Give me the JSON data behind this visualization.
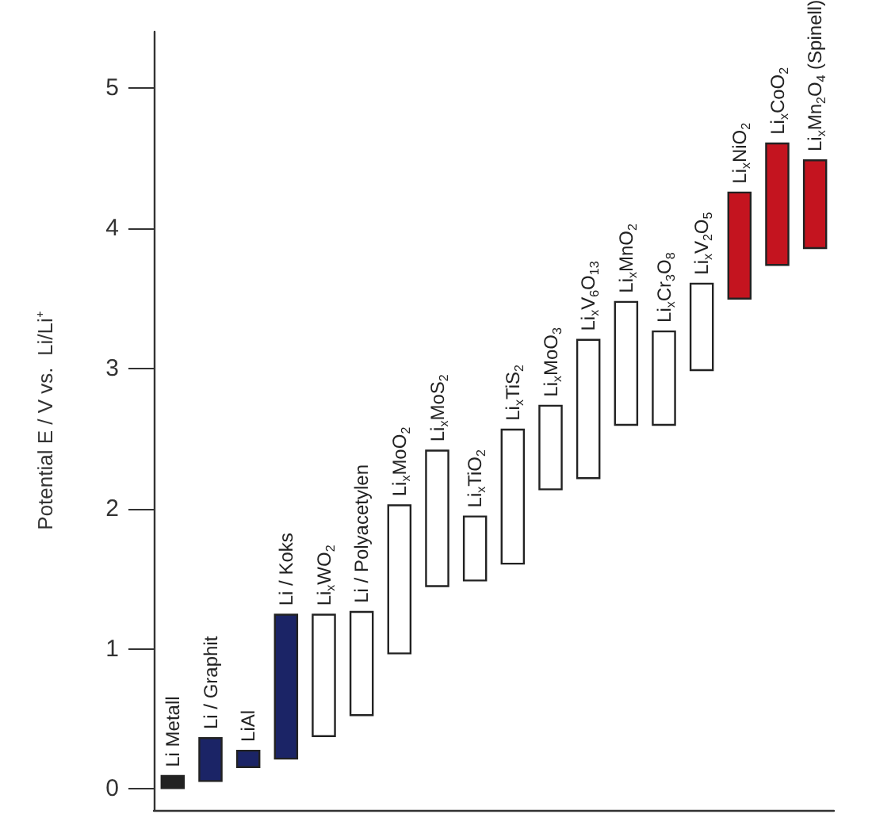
{
  "chart_data": {
    "type": "bar",
    "ylabel": "Potential E / V vs.  Li/Li⁺",
    "categories": [
      "Li Metall",
      "Li / Graphit",
      "LiAl",
      "Li / Koks",
      "Li$_{x}$WO$_{2}$",
      "Li / Polyacetylen",
      "Li$_{x}$MoO$_{2}$",
      "Li$_{x}$MoS$_{2}$",
      "Li$_{x}$TiO$_{2}$",
      "Li$_{x}$TiS$_{2}$",
      "Li$_{x}$MoO$_{3}$",
      "Li$_{x}$V$_{6}$O$_{13}$",
      "Li$_{x}$MnO$_{2}$",
      "Li$_{x}$Cr$_{3}$O$_{8}$",
      "Li$_{x}$V$_{2}$O$_{5}$",
      "Li$_{x}$NiO$_{2}$",
      "Li$_{x}$CoO$_{2}$",
      "Li$_{x}$Mn$_{2}$O$_{4}$ (Spinell)"
    ],
    "base": [
      0,
      0.05,
      0.15,
      0.21,
      0.37,
      0.52,
      0.96,
      1.44,
      1.48,
      1.6,
      2.13,
      2.21,
      2.59,
      2.59,
      2.98,
      3.49,
      3.73,
      3.85
    ],
    "values": [
      0.1,
      0.32,
      0.13,
      1.04,
      0.88,
      0.75,
      1.07,
      0.98,
      0.47,
      0.97,
      0.61,
      1.0,
      0.89,
      0.68,
      0.63,
      0.77,
      0.88,
      0.64
    ],
    "colors": [
      "#222222",
      "#1b2466",
      "#1b2466",
      "#1b2466",
      "#ffffff",
      "#ffffff",
      "#ffffff",
      "#ffffff",
      "#ffffff",
      "#ffffff",
      "#ffffff",
      "#ffffff",
      "#ffffff",
      "#ffffff",
      "#ffffff",
      "#c4141f",
      "#c4141f",
      "#c4141f"
    ],
    "ylim": [
      -0.15,
      5.4
    ],
    "yticks": [
      0,
      1,
      2,
      3,
      4,
      5
    ]
  }
}
